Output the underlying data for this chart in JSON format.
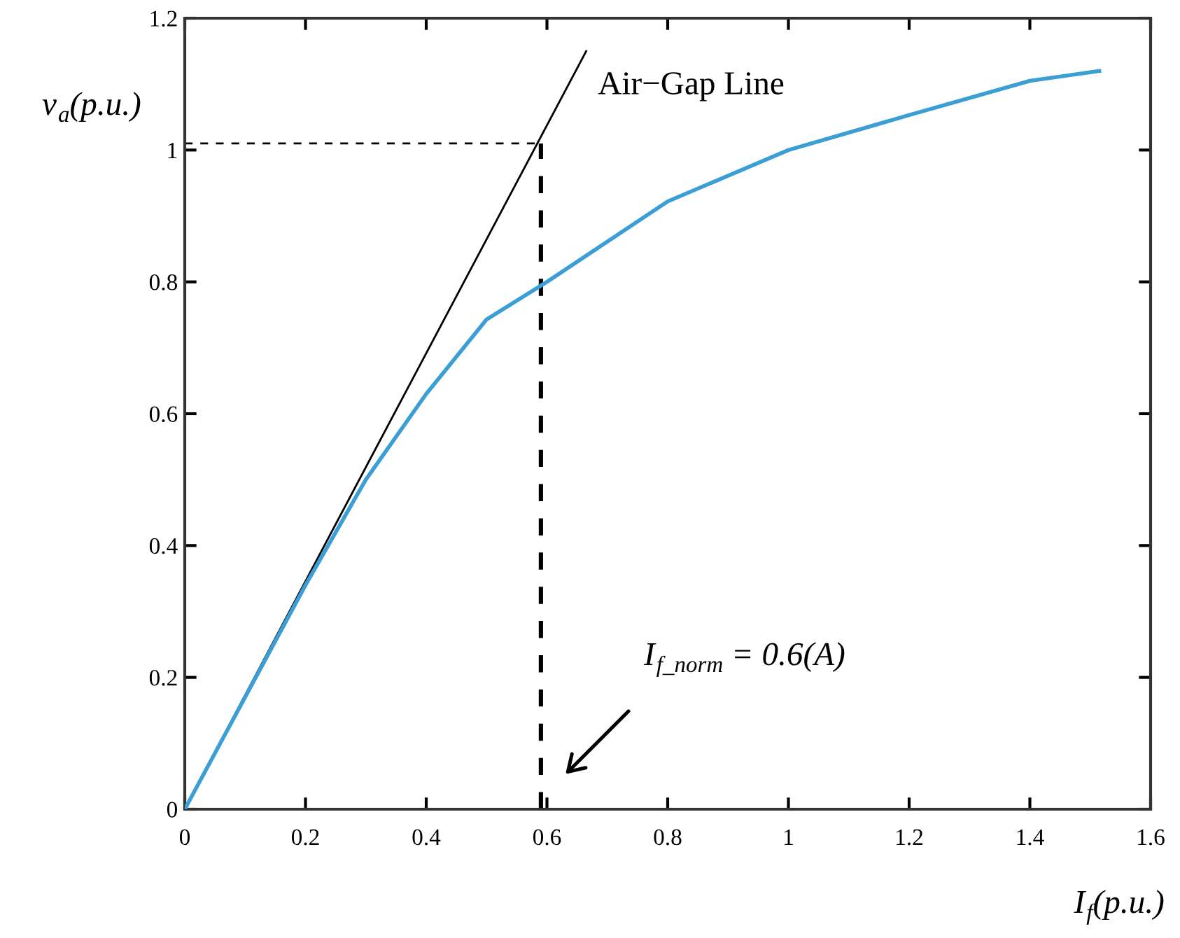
{
  "chart_data": {
    "type": "line",
    "xlabel": "I$_{f}$(p.u.)",
    "ylabel": "v$_{a}$(p.u.)",
    "series": [
      {
        "color": "#3b9fd6",
        "x": [
          0,
          0.2,
          0.3,
          0.4,
          0.5,
          0.6,
          0.8,
          1.0,
          1.2,
          1.4,
          1.515
        ],
        "values": [
          0,
          0.34,
          0.5,
          0.63,
          0.743,
          0.8,
          0.922,
          1.0,
          1.053,
          1.105,
          1.12
        ]
      },
      {
        "name": "Air−Gap Line",
        "color": "#000000",
        "x": [
          0,
          0.665
        ],
        "values": [
          0,
          1.15
        ]
      },
      {
        "color": "#000000",
        "line_style": "dashed",
        "x": [
          0,
          0.59
        ],
        "values": [
          1.01,
          1.01
        ]
      },
      {
        "color": "#000000",
        "line_style": "dashed",
        "x": [
          0.59,
          0.59
        ],
        "values": [
          0,
          1.01
        ]
      }
    ],
    "annotations": [
      "I$_{f_norm}$ = 0.6(A)"
    ],
    "xlim": [
      0,
      1.6
    ],
    "ylim": [
      0,
      1.2
    ],
    "xticks": [
      0,
      0.2,
      0.4,
      0.6,
      0.8,
      1,
      1.2,
      1.4,
      1.6
    ],
    "yticks": [
      0,
      0.2,
      0.4,
      0.6,
      0.8,
      1,
      1.2
    ],
    "grid": false,
    "legend": false
  }
}
